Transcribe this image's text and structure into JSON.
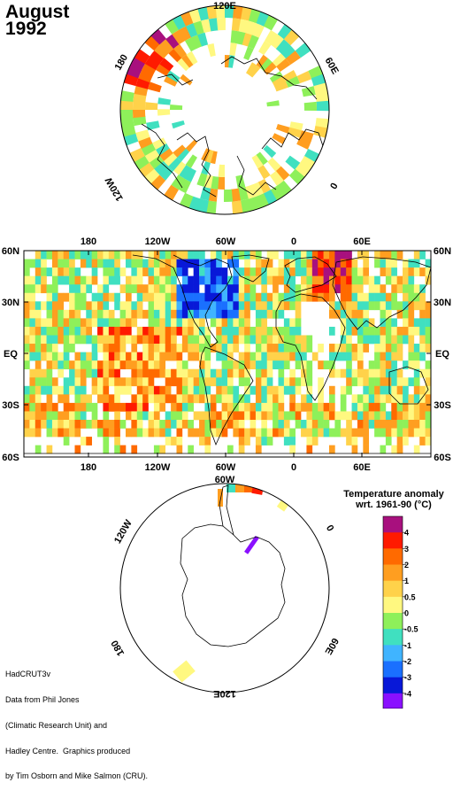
{
  "header": {
    "month": "August",
    "year": "1992"
  },
  "credits": [
    "HadCRUT3v",
    "Data from Phil Jones",
    "(Climatic Research Unit) and",
    "Hadley Centre.  Graphics produced",
    "by Tim Osborn and Mike Salmon (CRU)."
  ],
  "north_polar": {
    "longitude_labels": [
      "120E",
      "60E",
      "0",
      "120W",
      "180"
    ]
  },
  "map": {
    "lat_labels": [
      "60N",
      "30N",
      "EQ",
      "30S",
      "60S"
    ],
    "lon_labels": [
      "180",
      "120W",
      "60W",
      "0",
      "60E"
    ]
  },
  "south_polar": {
    "longitude_labels": [
      "120W",
      "60W",
      "0",
      "60E",
      "120E",
      "180"
    ]
  },
  "legend": {
    "title_line1": "Temperature anomaly",
    "title_line2": "wrt. 1961-90  (°C)",
    "ticks": [
      "4",
      "3",
      "2",
      "1",
      "0.5",
      "0",
      "-0.5",
      "-1",
      "-2",
      "-3",
      "-4"
    ],
    "colors": [
      "#a8107e",
      "#ff1a00",
      "#ff6a00",
      "#ff9e20",
      "#ffd24a",
      "#fff880",
      "#8ef05a",
      "#40e0c0",
      "#40b4ff",
      "#1a70ff",
      "#0818d8",
      "#8a10ff"
    ]
  },
  "colors": {
    "ocean_boundary": "#000000",
    "background": "#ffffff"
  }
}
